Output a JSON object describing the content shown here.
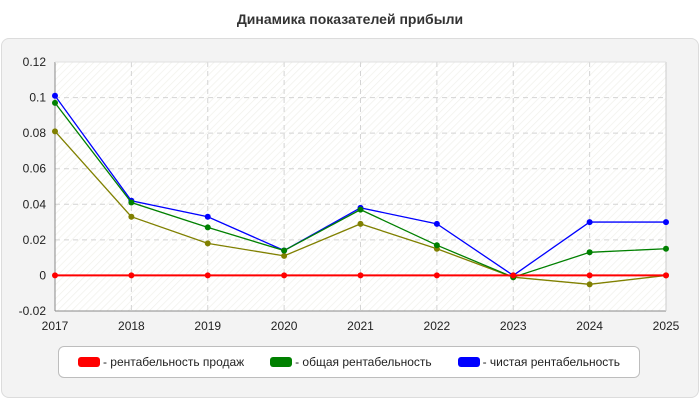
{
  "chart_data": {
    "type": "line",
    "title": "Динамика показателей прибыли",
    "xlabel": "",
    "ylabel": "",
    "x": [
      "2017",
      "2018",
      "2019",
      "2020",
      "2021",
      "2022",
      "2023",
      "2024",
      "2025"
    ],
    "ylim": [
      -0.02,
      0.12
    ],
    "yticks": [
      "-0.02",
      "0",
      "0.02",
      "0.04",
      "0.06",
      "0.08",
      "0.1",
      "0.12"
    ],
    "grid": true,
    "legend_position": "bottom",
    "series": [
      {
        "name": "- рентабельность продаж",
        "color": "#ff0000",
        "values": [
          0,
          0,
          0,
          0,
          0,
          0,
          0,
          0,
          0
        ]
      },
      {
        "name": "- общая рентабельность",
        "color": "#008000",
        "values": [
          0.097,
          0.041,
          0.027,
          0.014,
          0.037,
          0.017,
          -0.001,
          0.013,
          0.015
        ]
      },
      {
        "name": "- чистая рентабельность",
        "color": "#0000ff",
        "values": [
          0.101,
          0.042,
          0.033,
          0.014,
          0.038,
          0.029,
          0.0,
          0.03,
          0.03
        ]
      },
      {
        "name": "",
        "color": "#808000",
        "values": [
          0.081,
          0.033,
          0.018,
          0.011,
          0.029,
          0.015,
          -0.001,
          -0.005,
          0.0
        ]
      }
    ]
  }
}
